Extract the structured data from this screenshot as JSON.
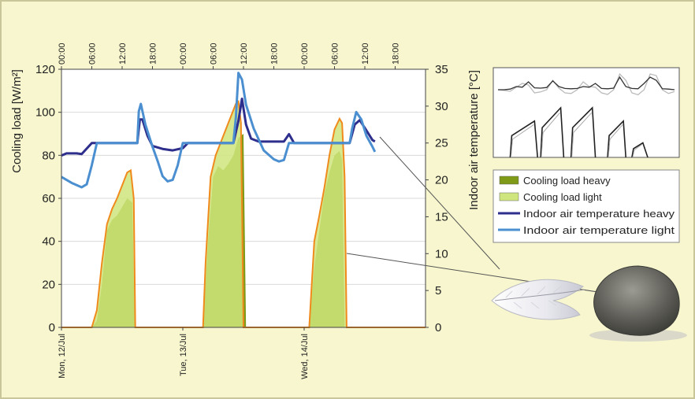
{
  "chart_data": {
    "type": "area",
    "y_left": {
      "label": "Cooling load [W/m²]",
      "ticks": [
        0,
        20,
        40,
        60,
        80,
        100,
        120
      ],
      "range": [
        0,
        120
      ]
    },
    "y_right": {
      "label": "Indoor air temperature [°C]",
      "ticks": [
        0,
        5,
        10,
        15,
        20,
        25,
        30,
        35
      ],
      "range": [
        0,
        35
      ]
    },
    "x_range_hours": [
      0,
      72
    ],
    "top_ticks": [
      {
        "h": 0,
        "label": "00:00"
      },
      {
        "h": 6,
        "label": "06:00"
      },
      {
        "h": 12,
        "label": "12:00"
      },
      {
        "h": 18,
        "label": "18:00"
      },
      {
        "h": 24,
        "label": "00:00"
      },
      {
        "h": 30,
        "label": "06:00"
      },
      {
        "h": 36,
        "label": "12:00"
      },
      {
        "h": 42,
        "label": "18:00"
      },
      {
        "h": 48,
        "label": "00:00"
      },
      {
        "h": 54,
        "label": "06:00"
      },
      {
        "h": 60,
        "label": "12:00"
      },
      {
        "h": 66,
        "label": "18:00"
      }
    ],
    "date_ticks": [
      {
        "h": 0,
        "label": "Mon, 12/Jul"
      },
      {
        "h": 24,
        "label": "Tue, 13/Jul"
      },
      {
        "h": 48,
        "label": "Wed, 14/Jul"
      }
    ],
    "series": [
      {
        "name": "Cooling load  heavy",
        "axis": "left",
        "kind": "area",
        "color": "#7e9a17",
        "points": [
          [
            0,
            0
          ],
          [
            6,
            0
          ],
          [
            7,
            3
          ],
          [
            8,
            20
          ],
          [
            9,
            45
          ],
          [
            10,
            50
          ],
          [
            11,
            52
          ],
          [
            12,
            56
          ],
          [
            13,
            60
          ],
          [
            14,
            58
          ],
          [
            14.5,
            0
          ],
          [
            24,
            0
          ],
          [
            28,
            0
          ],
          [
            29,
            40
          ],
          [
            30,
            70
          ],
          [
            31,
            75
          ],
          [
            32,
            73
          ],
          [
            33,
            76
          ],
          [
            34,
            80
          ],
          [
            35,
            88
          ],
          [
            36,
            90
          ],
          [
            36.5,
            0
          ],
          [
            48,
            0
          ],
          [
            49,
            0
          ],
          [
            50,
            28
          ],
          [
            51,
            45
          ],
          [
            52,
            62
          ],
          [
            53,
            72
          ],
          [
            54,
            80
          ],
          [
            55,
            82
          ],
          [
            55.5,
            78
          ],
          [
            56,
            0
          ],
          [
            72,
            0
          ]
        ]
      },
      {
        "name": "Cooling load light",
        "axis": "left",
        "kind": "area",
        "color": "#cfe57d",
        "points": [
          [
            0,
            0
          ],
          [
            6,
            0
          ],
          [
            7,
            8
          ],
          [
            8,
            30
          ],
          [
            9,
            48
          ],
          [
            10,
            55
          ],
          [
            11,
            60
          ],
          [
            12,
            66
          ],
          [
            13,
            72
          ],
          [
            13.7,
            73
          ],
          [
            14.3,
            60
          ],
          [
            14.6,
            0
          ],
          [
            24,
            0
          ],
          [
            28,
            0
          ],
          [
            28.5,
            30
          ],
          [
            29.5,
            70
          ],
          [
            30.5,
            80
          ],
          [
            31.5,
            86
          ],
          [
            32.5,
            92
          ],
          [
            33.5,
            98
          ],
          [
            34.5,
            104
          ],
          [
            35,
            105
          ],
          [
            35.5,
            95
          ],
          [
            36,
            0
          ],
          [
            48,
            0
          ],
          [
            49,
            0
          ],
          [
            50,
            40
          ],
          [
            51,
            52
          ],
          [
            52,
            65
          ],
          [
            53,
            80
          ],
          [
            54,
            92
          ],
          [
            55,
            97
          ],
          [
            55.5,
            95
          ],
          [
            56,
            70
          ],
          [
            56.4,
            0
          ],
          [
            72,
            0
          ]
        ]
      },
      {
        "name": "Indoor air temperature heavy",
        "axis": "right",
        "kind": "line",
        "color": "#2e2e8c",
        "points": [
          [
            0,
            23.3
          ],
          [
            1,
            23.6
          ],
          [
            3,
            23.6
          ],
          [
            4,
            23.5
          ],
          [
            6,
            25
          ],
          [
            7,
            25
          ],
          [
            15,
            25
          ],
          [
            15.5,
            28.2
          ],
          [
            16,
            28.2
          ],
          [
            17,
            26
          ],
          [
            18,
            24.6
          ],
          [
            20,
            24.2
          ],
          [
            22,
            24
          ],
          [
            24,
            24.3
          ],
          [
            25,
            25
          ],
          [
            26,
            25
          ],
          [
            34,
            25
          ],
          [
            35,
            28
          ],
          [
            35.7,
            31
          ],
          [
            36.5,
            27.5
          ],
          [
            37.5,
            25.6
          ],
          [
            39,
            25.2
          ],
          [
            42,
            25.2
          ],
          [
            44,
            25.2
          ],
          [
            45,
            26.2
          ],
          [
            46,
            25
          ],
          [
            57,
            25
          ],
          [
            58,
            27.5
          ],
          [
            59,
            28.1
          ],
          [
            60.5,
            26.5
          ],
          [
            61.5,
            25.4
          ],
          [
            62,
            25.2
          ]
        ]
      },
      {
        "name": "Indoor air temperature light",
        "axis": "right",
        "kind": "line",
        "color": "#4b8fd0",
        "points": [
          [
            0,
            20.4
          ],
          [
            2,
            19.6
          ],
          [
            4,
            19
          ],
          [
            5,
            19.4
          ],
          [
            6,
            22
          ],
          [
            7,
            25
          ],
          [
            15,
            25
          ],
          [
            15.3,
            29.3
          ],
          [
            15.7,
            30.3
          ],
          [
            16.6,
            27.5
          ],
          [
            18,
            24.5
          ],
          [
            19,
            22.6
          ],
          [
            20,
            20.5
          ],
          [
            21,
            19.8
          ],
          [
            22,
            20
          ],
          [
            23,
            22
          ],
          [
            24,
            25
          ],
          [
            34,
            25
          ],
          [
            34.5,
            28.5
          ],
          [
            35,
            34.5
          ],
          [
            35.7,
            33.6
          ],
          [
            36.5,
            30.2
          ],
          [
            38,
            27
          ],
          [
            40,
            24
          ],
          [
            42,
            22.8
          ],
          [
            43,
            22.5
          ],
          [
            44,
            22.7
          ],
          [
            45,
            25
          ],
          [
            57,
            25
          ],
          [
            57.5,
            27
          ],
          [
            58.3,
            29.2
          ],
          [
            59.3,
            28.2
          ],
          [
            60.3,
            26
          ],
          [
            61.5,
            24.5
          ],
          [
            62,
            23.8
          ]
        ]
      }
    ],
    "legend": {
      "position": "right",
      "entries": [
        {
          "label": "Cooling load  heavy",
          "color": "#7e9a17",
          "shape": "rect"
        },
        {
          "label": "Cooling load light",
          "color": "#cfe57d",
          "shape": "rect"
        },
        {
          "label": "Indoor air temperature heavy",
          "color": "#2e2e8c",
          "shape": "line"
        },
        {
          "label": "Indoor air temperature light",
          "color": "#4b8fd0",
          "shape": "line"
        }
      ]
    },
    "inset": {
      "type": "line",
      "series": [
        {
          "color": "#333333",
          "values": [
            31,
            31,
            31.2,
            32,
            31.8,
            33.5,
            31.6,
            31.5,
            31.7,
            33.8,
            32,
            31.4,
            31.3,
            31.4,
            32,
            31.8,
            33,
            31.4,
            31.3,
            31.5,
            35,
            32,
            31.4,
            31.3,
            33,
            35,
            34,
            31.3,
            31.2,
            31
          ]
        },
        {
          "color": "#bbbbbb",
          "values": [
            31,
            30.8,
            30.5,
            31.8,
            33,
            32.5,
            30,
            30.3,
            31,
            34,
            31.5,
            30,
            29.8,
            31,
            33.5,
            32,
            31.8,
            30,
            29.5,
            31,
            36,
            34,
            30,
            29.4,
            31,
            36,
            35.5,
            31,
            29.8,
            30.4
          ]
        }
      ],
      "spikes": [
        {
          "start": 2,
          "peak": 6,
          "end": 6.5,
          "height": 0.55
        },
        {
          "start": 7,
          "peak": 10.3,
          "end": 10.8,
          "height": 0.75
        },
        {
          "start": 12,
          "peak": 15.5,
          "end": 16,
          "height": 0.75
        },
        {
          "start": 18,
          "peak": 20.6,
          "end": 21,
          "height": 0.55
        },
        {
          "start": 22,
          "peak": 23.8,
          "end": 24.6,
          "height": 0.22
        }
      ]
    }
  }
}
